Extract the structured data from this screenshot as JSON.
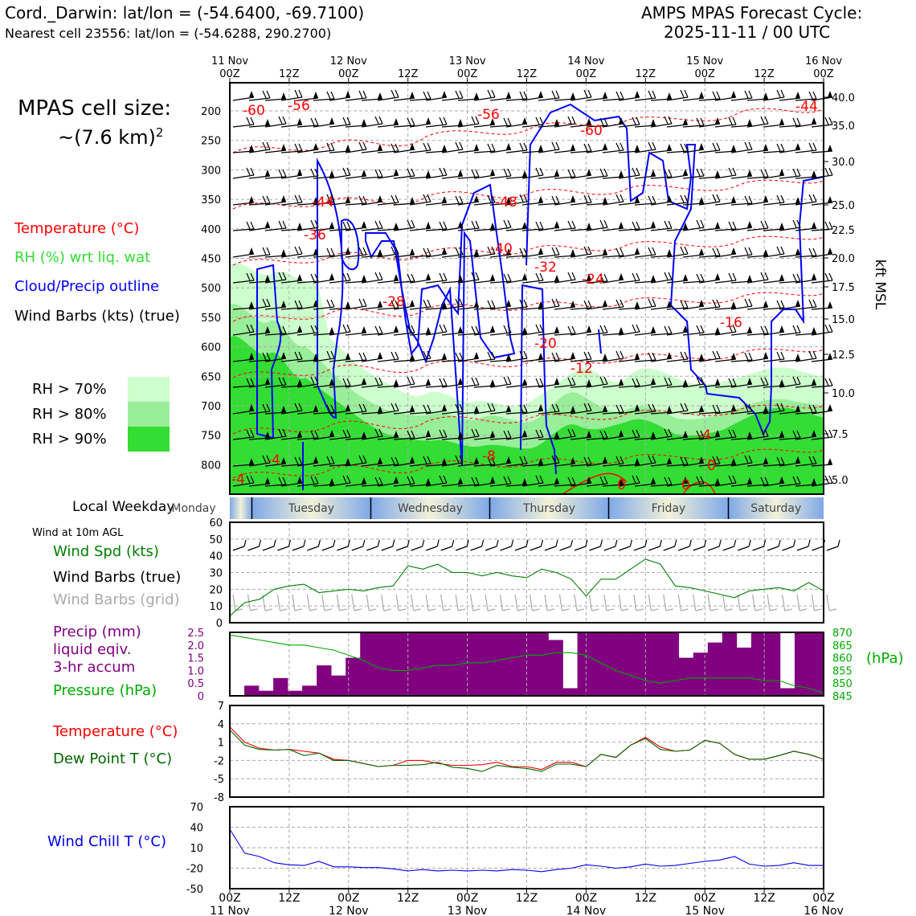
{
  "header": {
    "station_line": "Cord._Darwin: lat/lon = (-54.6400, -69.7100)",
    "nearest_cell_line": "Nearest cell 23556: lat/lon = (-54.6288, 290.2700)",
    "cycle_line1": "AMPS MPAS Forecast Cycle:",
    "cycle_line2": "2025-11-11 / 00 UTC"
  },
  "cell_size": {
    "line1": "MPAS cell size:",
    "line2": "~(7.6 km)",
    "exponent": "2"
  },
  "legend": {
    "temperature": {
      "label": "Temperature (°C)",
      "color": "#ff0000"
    },
    "rh": {
      "label": "RH (%) wrt liq. wat",
      "color": "#33dd33"
    },
    "cloud": {
      "label": "Cloud/Precip outline",
      "color": "#0000ff"
    },
    "barbs": {
      "label": "Wind Barbs (kts) (true)",
      "color": "#000000"
    },
    "rh_levels": [
      {
        "label": "RH > 70%",
        "color": "#ccffcc"
      },
      {
        "label": "RH > 80%",
        "color": "#99ee99"
      },
      {
        "label": "RH > 90%",
        "color": "#33dd33"
      }
    ]
  },
  "time_axis": {
    "top_dates": [
      "11 Nov",
      "",
      "12 Nov",
      "",
      "13 Nov",
      "",
      "14 Nov",
      "",
      "15 Nov",
      "",
      "16 Nov"
    ],
    "top_hours": [
      "00Z",
      "12Z",
      "00Z",
      "12Z",
      "00Z",
      "12Z",
      "00Z",
      "12Z",
      "00Z",
      "12Z",
      "00Z"
    ],
    "bottom_dates": [
      "11 Nov",
      "",
      "12 Nov",
      "",
      "13 Nov",
      "",
      "14 Nov",
      "",
      "15 Nov",
      "",
      "16 Nov"
    ],
    "bottom_hours": [
      "00Z",
      "12Z",
      "00Z",
      "12Z",
      "00Z",
      "12Z",
      "00Z",
      "12Z",
      "00Z",
      "12Z",
      "00Z"
    ]
  },
  "weekday": {
    "label": "Local Weekday",
    "days": [
      "Monday",
      "Tuesday",
      "Wednesday",
      "Thursday",
      "Friday",
      "Saturday"
    ]
  },
  "chart_data": [
    {
      "type": "heatmap",
      "title": "",
      "y_left_ticks": [
        "200",
        "250",
        "300",
        "350",
        "400",
        "450",
        "500",
        "550",
        "600",
        "650",
        "700",
        "750",
        "800"
      ],
      "y_right_ticks": [
        "40.0",
        "35.0",
        "30.0",
        "25.0",
        "22.5",
        "20.0",
        "17.5",
        "15.0",
        "12.5",
        "10.0",
        "7.5",
        "5.0"
      ],
      "ylabel_right": "kft MSL",
      "contour_labels": [
        "-60",
        "-56",
        "-56",
        "-60",
        "-44",
        "-44",
        "-48",
        "-36",
        "-40",
        "-32",
        "-28",
        "-24",
        "-20",
        "-16",
        "-12",
        "-8",
        "-4",
        "-4",
        "-4",
        "0",
        "0",
        "0"
      ]
    },
    {
      "type": "line",
      "title_lines": [
        "Wind at 10m AGL"
      ],
      "labels": [
        "Wind Spd (kts)",
        "Wind Barbs (true)",
        "Wind Barbs (grid)"
      ],
      "label_colors": [
        "#008000",
        "#000000",
        "#aaaaaa"
      ],
      "y_ticks": [
        "60",
        "50",
        "40",
        "30",
        "20",
        "10",
        "0"
      ],
      "ylim": [
        0,
        60
      ],
      "x_hours": [
        0,
        3,
        6,
        9,
        12,
        15,
        18,
        21,
        24,
        27,
        30,
        33,
        36,
        39,
        42,
        45,
        48,
        51,
        54,
        57,
        60,
        63,
        66,
        69,
        72,
        75,
        78,
        81,
        84,
        87,
        90,
        93,
        96,
        99,
        102,
        105,
        108,
        111,
        114,
        117,
        120
      ],
      "wind_speed": [
        4,
        12,
        14,
        20,
        22,
        23,
        18,
        19,
        20,
        19,
        21,
        22,
        34,
        32,
        35,
        30,
        30,
        28,
        30,
        28,
        27,
        32,
        30,
        26,
        16,
        26,
        26,
        32,
        38,
        35,
        22,
        21,
        19,
        17,
        15,
        19,
        20,
        21,
        19,
        24,
        19
      ]
    },
    {
      "type": "bar",
      "labels": [
        "Precip (mm)",
        "liquid eqiv.",
        "3-hr accum",
        "Pressure (hPa)"
      ],
      "label_colors": [
        "#800080",
        "#800080",
        "#800080",
        "#00aa00"
      ],
      "y_left_ticks": [
        "2.5",
        "2.0",
        "1.5",
        "1.0",
        "0.5",
        "0"
      ],
      "y_right_ticks": [
        "870",
        "865",
        "860",
        "855",
        "850",
        "845"
      ],
      "y_right_label": "(hPa)",
      "ylim": [
        0,
        2.5
      ],
      "y2lim": [
        845,
        870
      ],
      "precip": [
        0,
        0.4,
        0.2,
        0.7,
        0.2,
        0.4,
        1.2,
        0.8,
        1.5,
        2.5,
        2.5,
        2.5,
        2.5,
        2.5,
        2.5,
        2.5,
        2.5,
        2.5,
        2.5,
        2.5,
        2.5,
        2.5,
        2.2,
        0.3,
        2.5,
        2.5,
        2.5,
        2.5,
        2.5,
        2.5,
        2.5,
        1.5,
        1.7,
        2.1,
        2.5,
        1.9,
        2.5,
        2.5,
        0.3,
        2.5,
        2.5
      ],
      "pressure": [
        869,
        868,
        867,
        866,
        865,
        865,
        864,
        863,
        861,
        859,
        856,
        855,
        855,
        856,
        857,
        857,
        858,
        858,
        859,
        860,
        861,
        861,
        862,
        862,
        861,
        858,
        855,
        853,
        851,
        850,
        851,
        852,
        852,
        852,
        852,
        852,
        851,
        851,
        849,
        848,
        846
      ]
    },
    {
      "type": "line",
      "labels": [
        "Temperature (°C)",
        "Dew Point T (°C)"
      ],
      "label_colors": [
        "#ff0000",
        "#006600"
      ],
      "y_ticks": [
        "7",
        "4",
        "1",
        "-2",
        "-5",
        "-8"
      ],
      "ylim": [
        -8,
        7
      ],
      "temperature": [
        3.5,
        1,
        0,
        -0.3,
        -0.2,
        -0.5,
        -0.8,
        -1.8,
        -2,
        -2.5,
        -3,
        -2.8,
        -2,
        -2,
        -2.5,
        -2.8,
        -2.8,
        -2.7,
        -2.3,
        -3,
        -3,
        -3.5,
        -2.3,
        -2.3,
        -3,
        -1,
        -1.5,
        0.5,
        1.8,
        0.2,
        -0.5,
        -0.3,
        1.3,
        0.8,
        -1,
        -1.8,
        -1.8,
        -1.2,
        -0.5,
        -1,
        -1.8
      ],
      "dew_point": [
        3,
        0.5,
        -0.2,
        -0.3,
        -0.2,
        -1.2,
        -0.8,
        -2,
        -2,
        -2.5,
        -3,
        -2.8,
        -2.8,
        -2.7,
        -2.3,
        -3.1,
        -3.3,
        -3.8,
        -2.8,
        -3.1,
        -3.3,
        -3.8,
        -2.6,
        -2.6,
        -3,
        -1,
        -1.5,
        0.5,
        1.6,
        -0.2,
        -0.5,
        -0.3,
        1.3,
        0.8,
        -1,
        -1.8,
        -1.8,
        -1.2,
        -0.5,
        -1,
        -1.8
      ]
    },
    {
      "type": "line",
      "labels": [
        "Wind Chill T (°C)"
      ],
      "label_colors": [
        "#0000ee"
      ],
      "y_ticks": [
        "70",
        "40",
        "10",
        "-20",
        "-50"
      ],
      "ylim": [
        -50,
        70
      ],
      "wind_chill": [
        37,
        2,
        -3,
        -12,
        -15,
        -16,
        -10,
        -18,
        -18,
        -19,
        -19,
        -21,
        -24,
        -22,
        -24,
        -23,
        -24,
        -23,
        -24,
        -22,
        -23,
        -25,
        -22,
        -20,
        -15,
        -17,
        -20,
        -18,
        -14,
        -17,
        -16,
        -13,
        -10,
        -8,
        -3,
        -14,
        -17,
        -16,
        -12,
        -16,
        -16
      ]
    }
  ]
}
